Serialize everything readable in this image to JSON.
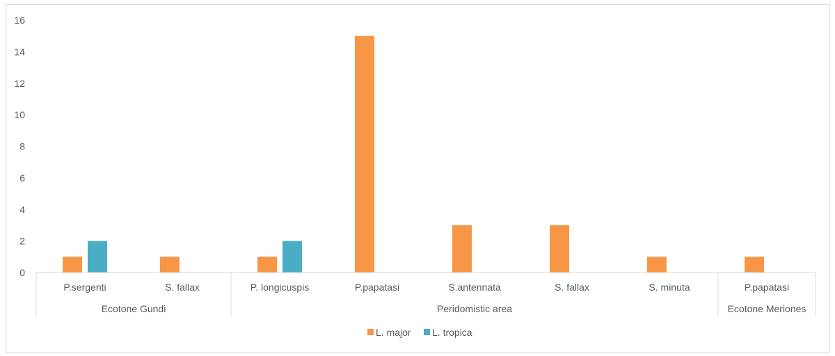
{
  "chart_data": {
    "type": "bar",
    "groups": [
      {
        "name": "Ecotone Gundi",
        "categories": [
          "P.sergenti",
          "S. fallax"
        ]
      },
      {
        "name": "Peridomistic area",
        "categories": [
          "P. longicuspis",
          "P.papatasi",
          "S.antennata",
          "S. fallax",
          "S. minuta"
        ]
      },
      {
        "name": "Ecotone Meriones",
        "categories": [
          "P.papatasi"
        ]
      }
    ],
    "categories": [
      "P.sergenti",
      "S. fallax",
      "P. longicuspis",
      "P.papatasi",
      "S.antennata",
      "S. fallax",
      "S. minuta",
      "P.papatasi"
    ],
    "series": [
      {
        "name": "L. major",
        "color": "#f79646",
        "values": [
          1,
          1,
          1,
          15,
          3,
          3,
          1,
          1
        ]
      },
      {
        "name": "L. tropica",
        "color": "#4bacc6",
        "values": [
          2,
          null,
          2,
          null,
          null,
          null,
          null,
          null
        ]
      }
    ],
    "ylim": [
      0,
      16
    ],
    "yticks": [
      0,
      2,
      4,
      6,
      8,
      10,
      12,
      14,
      16
    ],
    "xlabel": "",
    "ylabel": "",
    "grid": false,
    "legend": "bottom"
  }
}
